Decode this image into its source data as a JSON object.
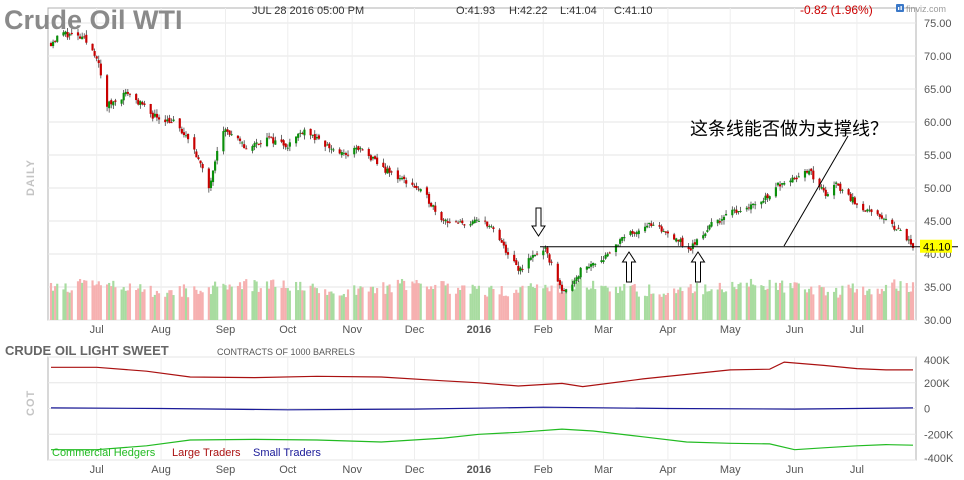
{
  "header": {
    "symbol_title": "Crude Oil WTI",
    "timestamp": "JUL 28 2016 05:00 PM",
    "open": "O:41.93",
    "high": "H:42.22",
    "low": "L:41.04",
    "close": "C:41.10",
    "change": "-0.82 (1.96%)",
    "brand": "finviz.com",
    "change_color": "#cc0000"
  },
  "price_panel": {
    "period_label": "DAILY",
    "annotation": "这条线能否做为支撑线？",
    "last_price_label": "41.10",
    "support_level": 41.1
  },
  "cot_panel": {
    "title": "CRUDE OIL LIGHT SWEET",
    "subtitle": "CONTRACTS OF 1000 BARRELS",
    "axis_label": "COT"
  },
  "chart_data": [
    {
      "type": "candlestick",
      "ylim": [
        30,
        75
      ],
      "y_ticks": [
        "75.00",
        "70.00",
        "65.00",
        "60.00",
        "55.00",
        "50.00",
        "45.00",
        "40.00",
        "35.00",
        "30.00"
      ],
      "y_tick_values": [
        75,
        70,
        65,
        60,
        55,
        50,
        45,
        40,
        35,
        30
      ],
      "x_ticks": [
        "Jul",
        "Aug",
        "Sep",
        "Oct",
        "Nov",
        "Dec",
        "2016",
        "Feb",
        "Mar",
        "Apr",
        "May",
        "Jun",
        "Jul"
      ],
      "x_range": [
        "2015-06-09",
        "2016-07-28"
      ],
      "x_tick_dates": [
        "2015-07-01",
        "2015-08-01",
        "2015-09-01",
        "2015-10-01",
        "2015-11-01",
        "2015-12-01",
        "2016-01-01",
        "2016-02-01",
        "2016-03-01",
        "2016-04-01",
        "2016-05-01",
        "2016-06-01",
        "2016-07-01"
      ],
      "close_path": [
        [
          "2015-06-09",
          72.0
        ],
        [
          "2015-06-15",
          73.5
        ],
        [
          "2015-06-25",
          72.5
        ],
        [
          "2015-07-01",
          70.0
        ],
        [
          "2015-07-06",
          62.5
        ],
        [
          "2015-07-16",
          64.5
        ],
        [
          "2015-07-28",
          61.0
        ],
        [
          "2015-08-07",
          60.0
        ],
        [
          "2015-08-17",
          56.0
        ],
        [
          "2015-08-24",
          50.0
        ],
        [
          "2015-08-28",
          56.0
        ],
        [
          "2015-08-31",
          59.0
        ],
        [
          "2015-09-11",
          56.0
        ],
        [
          "2015-09-21",
          57.5
        ],
        [
          "2015-10-01",
          56.5
        ],
        [
          "2015-10-09",
          59.0
        ],
        [
          "2015-10-16",
          57.0
        ],
        [
          "2015-10-28",
          55.0
        ],
        [
          "2015-11-04",
          56.0
        ],
        [
          "2015-11-18",
          52.5
        ],
        [
          "2015-11-30",
          50.5
        ],
        [
          "2015-12-07",
          48.5
        ],
        [
          "2015-12-14",
          45.5
        ],
        [
          "2015-12-21",
          44.5
        ],
        [
          "2016-01-04",
          45.0
        ],
        [
          "2016-01-08",
          43.5
        ],
        [
          "2016-01-14",
          40.5
        ],
        [
          "2016-01-20",
          37.5
        ],
        [
          "2016-01-28",
          40.0
        ],
        [
          "2016-02-02",
          40.5
        ],
        [
          "2016-02-11",
          34.0
        ],
        [
          "2016-02-19",
          37.5
        ],
        [
          "2016-03-01",
          39.5
        ],
        [
          "2016-03-11",
          42.5
        ],
        [
          "2016-03-22",
          44.5
        ],
        [
          "2016-04-05",
          42.5
        ],
        [
          "2016-04-11",
          40.5
        ],
        [
          "2016-04-22",
          44.5
        ],
        [
          "2016-05-03",
          46.5
        ],
        [
          "2016-05-16",
          48.0
        ],
        [
          "2016-05-26",
          51.0
        ],
        [
          "2016-06-08",
          52.5
        ],
        [
          "2016-06-16",
          49.0
        ],
        [
          "2016-06-21",
          50.5
        ],
        [
          "2016-06-28",
          48.5
        ],
        [
          "2016-07-08",
          46.0
        ],
        [
          "2016-07-15",
          45.0
        ],
        [
          "2016-07-22",
          43.5
        ],
        [
          "2016-07-28",
          41.1
        ]
      ]
    },
    {
      "type": "line",
      "ylim": [
        -400000,
        400000
      ],
      "y_ticks": [
        "400K",
        "200K",
        "0",
        "-200K",
        "-400K"
      ],
      "y_tick_values": [
        400000,
        200000,
        0,
        -200000,
        -400000
      ],
      "legend_placement": "bottom-left",
      "series": [
        {
          "name": "Commercial Hedgers",
          "color": "#22bb22",
          "points": [
            [
              "2015-06-09",
              -320000
            ],
            [
              "2015-07-01",
              -320000
            ],
            [
              "2015-07-25",
              -290000
            ],
            [
              "2015-08-15",
              -245000
            ],
            [
              "2015-09-15",
              -240000
            ],
            [
              "2015-10-15",
              -245000
            ],
            [
              "2015-11-15",
              -260000
            ],
            [
              "2015-12-15",
              -230000
            ],
            [
              "2016-01-01",
              -200000
            ],
            [
              "2016-01-20",
              -185000
            ],
            [
              "2016-02-10",
              -160000
            ],
            [
              "2016-02-25",
              -175000
            ],
            [
              "2016-03-20",
              -220000
            ],
            [
              "2016-04-10",
              -260000
            ],
            [
              "2016-05-01",
              -270000
            ],
            [
              "2016-05-20",
              -275000
            ],
            [
              "2016-06-01",
              -320000
            ],
            [
              "2016-06-15",
              -305000
            ],
            [
              "2016-07-01",
              -290000
            ],
            [
              "2016-07-15",
              -280000
            ],
            [
              "2016-07-28",
              -285000
            ]
          ]
        },
        {
          "name": "Large Traders",
          "color": "#aa1111",
          "points": [
            [
              "2015-06-09",
              320000
            ],
            [
              "2015-07-01",
              320000
            ],
            [
              "2015-07-25",
              290000
            ],
            [
              "2015-08-15",
              245000
            ],
            [
              "2015-09-15",
              240000
            ],
            [
              "2015-10-15",
              250000
            ],
            [
              "2015-11-15",
              245000
            ],
            [
              "2015-12-15",
              215000
            ],
            [
              "2016-01-01",
              200000
            ],
            [
              "2016-01-20",
              175000
            ],
            [
              "2016-02-10",
              195000
            ],
            [
              "2016-02-20",
              170000
            ],
            [
              "2016-03-20",
              230000
            ],
            [
              "2016-04-10",
              265000
            ],
            [
              "2016-05-01",
              300000
            ],
            [
              "2016-05-20",
              305000
            ],
            [
              "2016-05-27",
              360000
            ],
            [
              "2016-06-15",
              335000
            ],
            [
              "2016-07-01",
              310000
            ],
            [
              "2016-07-15",
              300000
            ],
            [
              "2016-07-28",
              300000
            ]
          ]
        },
        {
          "name": "Small Traders",
          "color": "#1a1a99",
          "points": [
            [
              "2015-06-09",
              5000
            ],
            [
              "2015-08-01",
              0
            ],
            [
              "2015-10-01",
              -10000
            ],
            [
              "2015-12-01",
              -5000
            ],
            [
              "2016-02-01",
              10000
            ],
            [
              "2016-04-01",
              0
            ],
            [
              "2016-06-01",
              -5000
            ],
            [
              "2016-07-28",
              5000
            ]
          ]
        }
      ]
    }
  ]
}
